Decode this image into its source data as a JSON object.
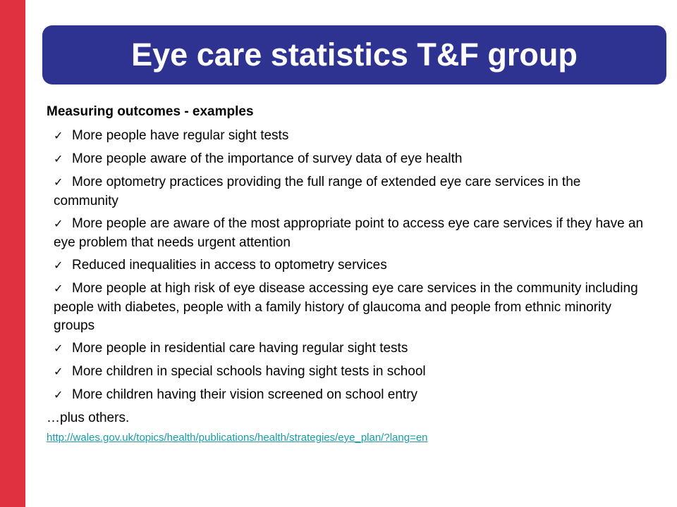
{
  "title": "Eye care statistics T&F group",
  "subtitle": "Measuring outcomes - examples",
  "items": [
    "More people have regular sight tests",
    "More people aware of the importance of survey data of eye health",
    "More optometry practices providing the full range of extended eye care services in the community",
    "More people are aware of the most appropriate point to access eye care services if they have an eye problem that needs urgent attention",
    "Reduced inequalities in access to optometry services",
    "More people at high risk of eye disease accessing eye care services in the community including people with diabetes, people with a family history of glaucoma and people from ethnic minority groups",
    "More people in residential care having regular sight tests",
    "More children in special schools having sight tests in school",
    "More children having their vision screened on school entry"
  ],
  "check_glyph": "✓",
  "footer_text": "…plus others.",
  "link_url_text": "http://wales.gov.uk/topics/health/publications/health/strategies/eye_plan/?lang=en",
  "colors": {
    "left_bar": "#e0313e",
    "banner": "#2e3291",
    "link": "#1a9ba6"
  }
}
